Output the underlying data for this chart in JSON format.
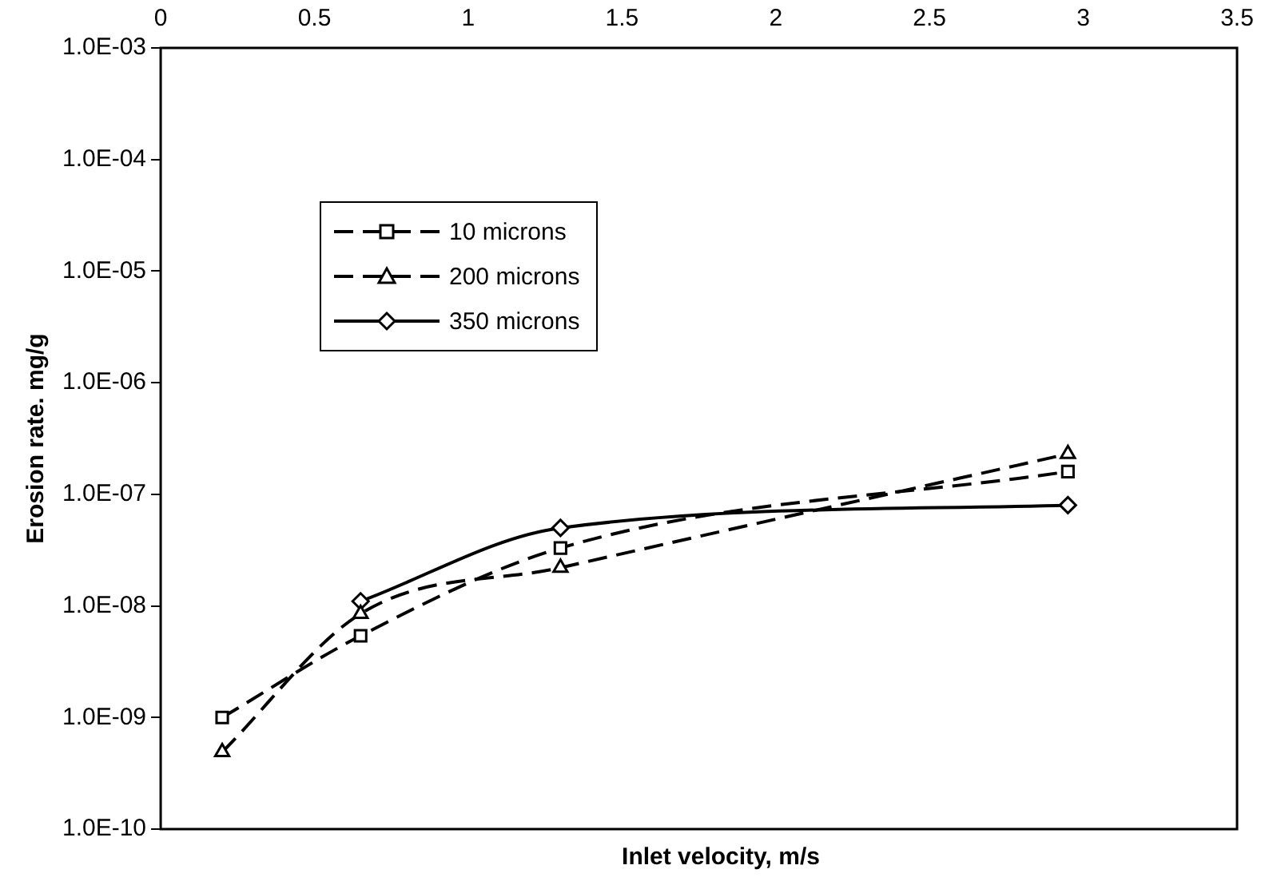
{
  "chart_data": {
    "type": "line",
    "xlabel": "Inlet velocity, m/s",
    "ylabel": "Erosion rate. mg/g",
    "log": "y",
    "grid": false,
    "legend": "top left",
    "xlim": [
      0,
      3.5
    ],
    "xticks": [
      0,
      0.5,
      1,
      1.5,
      2,
      2.5,
      3,
      3.5
    ],
    "ylim": [
      1e-10,
      0.001
    ],
    "yticks": [
      {
        "value": 1e-10,
        "label": "1.0E-10"
      },
      {
        "value": 1e-09,
        "label": "1.0E-09"
      },
      {
        "value": 1e-08,
        "label": "1.0E-08"
      },
      {
        "value": 1e-07,
        "label": "1.0E-07"
      },
      {
        "value": 1e-06,
        "label": "1.0E-06"
      },
      {
        "value": 1e-05,
        "label": "1.0E-05"
      },
      {
        "value": 0.0001,
        "label": "1.0E-04"
      },
      {
        "value": 0.001,
        "label": "1.0E-03"
      }
    ],
    "series": [
      {
        "name": "10 microns",
        "color": "#000000",
        "marker": "square",
        "line_style": "dashed",
        "x": [
          0.2,
          0.65,
          1.3,
          2.95
        ],
        "values": [
          1e-09,
          5.4e-09,
          3.3e-08,
          1.6e-07
        ]
      },
      {
        "name": "200 microns",
        "color": "#000000",
        "marker": "triangle",
        "line_style": "dashed",
        "x": [
          0.2,
          0.65,
          1.3,
          2.95
        ],
        "values": [
          4.9e-10,
          8.5e-09,
          2.2e-08,
          2.3e-07
        ]
      },
      {
        "name": "350 microns",
        "color": "#000000",
        "marker": "diamond",
        "line_style": "solid",
        "x": [
          0.65,
          1.3,
          2.95
        ],
        "values": [
          1.1e-08,
          5e-08,
          8e-08
        ]
      }
    ]
  }
}
